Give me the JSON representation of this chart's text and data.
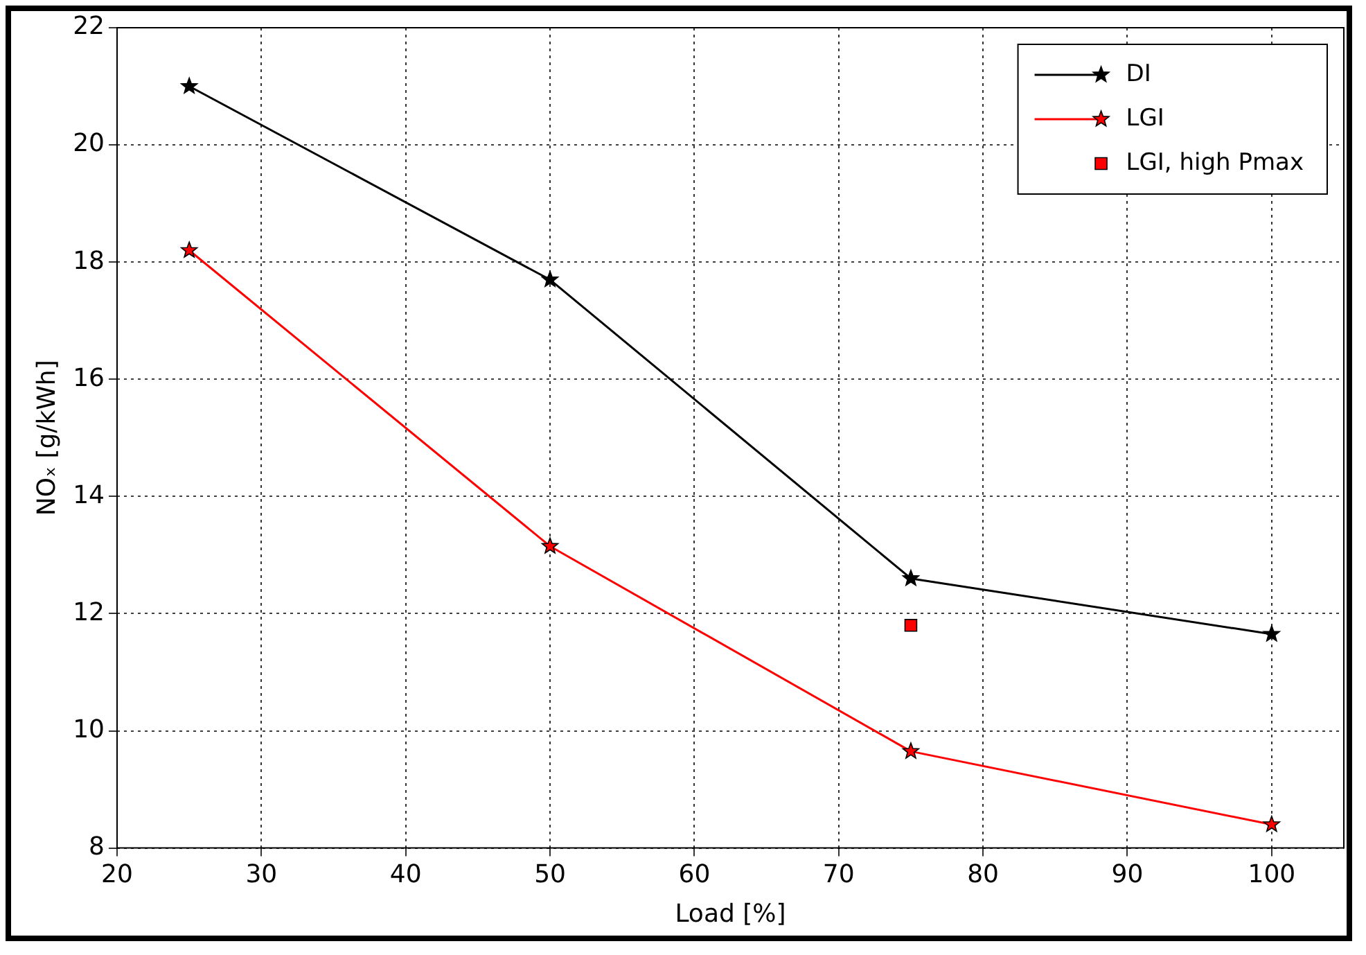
{
  "chart_data": {
    "type": "line",
    "xlabel": "Load [%]",
    "ylabel": "NOₓ [g/kWh]",
    "xlim": [
      20,
      105
    ],
    "xticks": [
      20,
      30,
      40,
      50,
      60,
      70,
      80,
      90,
      100
    ],
    "ylim": [
      8,
      22
    ],
    "yticks": [
      8,
      10,
      12,
      14,
      16,
      18,
      20,
      22
    ],
    "grid": true,
    "legend": "top right",
    "line_style": "solid",
    "series": [
      {
        "name": "DI",
        "color": "#000000",
        "marker": "star",
        "x": [
          25,
          50,
          75,
          100
        ],
        "values": [
          21.0,
          17.7,
          12.6,
          11.65
        ]
      },
      {
        "name": "LGI",
        "color": "#ff0000",
        "marker": "star",
        "x": [
          25,
          50,
          75,
          100
        ],
        "values": [
          18.2,
          13.15,
          9.65,
          8.4
        ]
      },
      {
        "name": "LGI, high Pmax",
        "type": "scatter",
        "color": "#ff0000",
        "marker": "square",
        "x": [
          75
        ],
        "values": [
          11.8
        ]
      }
    ]
  }
}
